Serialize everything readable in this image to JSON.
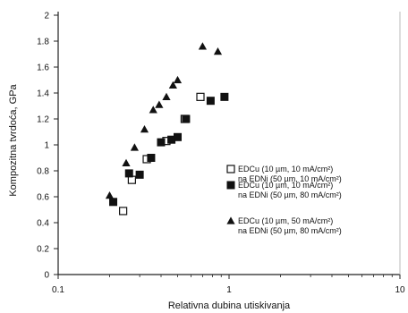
{
  "chart_data": {
    "type": "scatter",
    "title": "",
    "xlabel": "Relativna dubina utiskivanja",
    "ylabel": "Kompozitna tvrdoća, GPa",
    "x_scale": "log",
    "xlim": [
      0.1,
      10
    ],
    "ylim": [
      0,
      2
    ],
    "x_ticks": [
      0.1,
      1,
      10
    ],
    "x_tick_labels": [
      "0.1",
      "1",
      "10"
    ],
    "y_ticks": [
      0,
      0.2,
      0.4,
      0.6,
      0.8,
      1,
      1.2,
      1.4,
      1.6,
      1.8,
      2
    ],
    "y_tick_labels": [
      "0",
      "0.2",
      "0.4",
      "0.6",
      "0.8",
      "1",
      "1.2",
      "1.4",
      "1.6",
      "1.8",
      "2"
    ],
    "grid": false,
    "legend_position": "right",
    "series": [
      {
        "name_line1": "EDCu (10 µm, 10 mA/cm²)",
        "name_line2": "na EDNi (50 µm, 10 mA/cm²)",
        "marker": "open-square",
        "points": [
          [
            0.24,
            0.49
          ],
          [
            0.27,
            0.73
          ],
          [
            0.33,
            0.89
          ],
          [
            0.43,
            1.03
          ],
          [
            0.55,
            1.2
          ],
          [
            0.68,
            1.37
          ]
        ]
      },
      {
        "name_line1": "EDCu (10 µm, 10 mA/cm²)",
        "name_line2": "na EDNi (50 µm, 80 mA/cm²)",
        "marker": "filled-square",
        "points": [
          [
            0.21,
            0.56
          ],
          [
            0.26,
            0.78
          ],
          [
            0.3,
            0.77
          ],
          [
            0.35,
            0.9
          ],
          [
            0.4,
            1.02
          ],
          [
            0.46,
            1.04
          ],
          [
            0.5,
            1.06
          ],
          [
            0.56,
            1.2
          ],
          [
            0.78,
            1.34
          ],
          [
            0.94,
            1.37
          ]
        ]
      },
      {
        "name_line1": "EDCu (10 µm, 50 mA/cm²)",
        "name_line2": "na EDNi (50 µm, 80 mA/cm²)",
        "marker": "filled-triangle",
        "points": [
          [
            0.2,
            0.61
          ],
          [
            0.25,
            0.86
          ],
          [
            0.28,
            0.98
          ],
          [
            0.32,
            1.12
          ],
          [
            0.36,
            1.27
          ],
          [
            0.39,
            1.31
          ],
          [
            0.43,
            1.37
          ],
          [
            0.47,
            1.46
          ],
          [
            0.5,
            1.5
          ],
          [
            0.7,
            1.76
          ],
          [
            0.86,
            1.72
          ]
        ]
      }
    ]
  }
}
